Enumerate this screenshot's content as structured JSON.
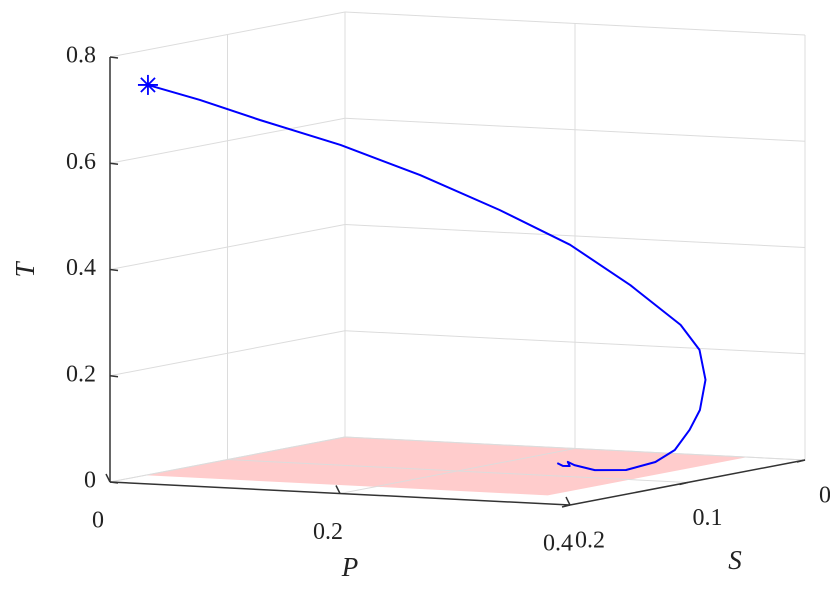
{
  "chart_data": {
    "type": "line3d",
    "xlabel": "P",
    "ylabel": "S",
    "zlabel": "T",
    "xlim": [
      0,
      0.4
    ],
    "ylim": [
      0,
      0.2
    ],
    "zlim": [
      0,
      0.8
    ],
    "xticks": [
      0,
      0.2,
      0.4
    ],
    "yticks": [
      0,
      0.1,
      0.2
    ],
    "zticks": [
      0,
      0.2,
      0.4,
      0.6,
      0.8
    ],
    "grid": true,
    "plane": {
      "color": "#ffcccc",
      "x": [
        0,
        0.35
      ],
      "y": [
        0,
        0.17
      ],
      "z": 0
    },
    "series": [
      {
        "color": "#0000ff",
        "start_marker": "asterisk",
        "x": [
          0.033,
          0.071,
          0.116,
          0.179,
          0.241,
          0.303,
          0.349,
          0.381,
          0.394,
          0.39,
          0.385,
          0.375,
          0.361,
          0.343,
          0.323,
          0.322,
          0.301,
          0.269,
          0.253,
          0.269,
          0.264,
          0.25
        ],
        "y": [
          0.2,
          0.193,
          0.186,
          0.179,
          0.172,
          0.165,
          0.15,
          0.13,
          0.1,
          0.08,
          0.07,
          0.065,
          0.06,
          0.055,
          0.052,
          0.076,
          0.082,
          0.068,
          0.058,
          0.072,
          0.073,
          0.064
        ],
        "z": [
          0.751,
          0.724,
          0.688,
          0.645,
          0.592,
          0.53,
          0.463,
          0.382,
          0.296,
          0.24,
          0.179,
          0.119,
          0.078,
          0.036,
          0.01,
          0.005,
          0.005,
          0.005,
          0.005,
          0.005,
          0.005,
          0.005
        ]
      }
    ]
  }
}
